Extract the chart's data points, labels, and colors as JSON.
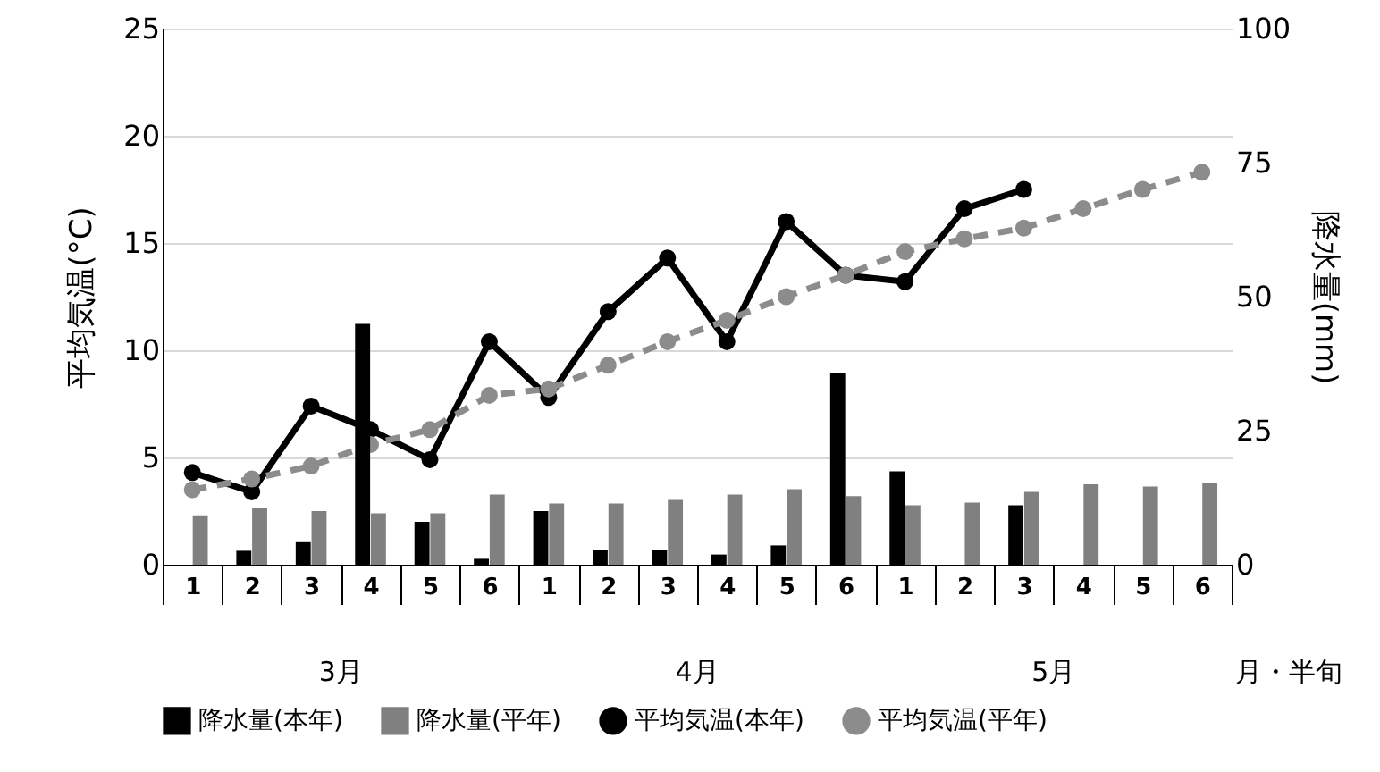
{
  "chart_data": {
    "type": "bar",
    "categories": [
      "1",
      "2",
      "3",
      "4",
      "5",
      "6",
      "1",
      "2",
      "3",
      "4",
      "5",
      "6",
      "1",
      "2",
      "3",
      "4",
      "5",
      "6"
    ],
    "annotations": [
      "3月",
      "4月",
      "5月"
    ],
    "xlabel": "月・半旬",
    "ylabel": "平均気温(°C)",
    "y2label": "降水量(mm)",
    "ylim": [
      0,
      25
    ],
    "yticks": [
      0,
      5,
      10,
      15,
      20,
      25
    ],
    "y2lim": [
      0,
      100
    ],
    "y2ticks": [
      0,
      25,
      50,
      75,
      100
    ],
    "grid": "y",
    "legend": "bottom",
    "marker": "circle",
    "series": [
      {
        "name": "降水量(本年)",
        "axis": "y2",
        "color": "#000000",
        "values": [
          0,
          2.6,
          4.2,
          44.9,
          8.0,
          1.1,
          10.0,
          2.8,
          2.8,
          1.9,
          3.6,
          35.8,
          17.4,
          0,
          11.1,
          null,
          null,
          null
        ]
      },
      {
        "name": "降水量(平年)",
        "axis": "y2",
        "color": "#808080",
        "values": [
          9.2,
          10.5,
          10.0,
          9.6,
          9.6,
          13.1,
          11.4,
          11.4,
          12.1,
          13.1,
          14.1,
          12.8,
          11.1,
          11.6,
          13.6,
          15.0,
          14.6,
          15.3
        ]
      },
      {
        "name": "平均気温(本年)",
        "type": "line",
        "color": "#000000",
        "line_style": "solid",
        "values": [
          4.3,
          3.4,
          7.4,
          6.3,
          4.9,
          10.4,
          7.8,
          11.8,
          14.3,
          10.4,
          16.0,
          13.5,
          13.2,
          16.6,
          17.5,
          null,
          null,
          null
        ]
      },
      {
        "name": "平均気温(平年)",
        "type": "line",
        "color": "#8c8c8c",
        "line_style": "dashed",
        "values": [
          3.5,
          4.0,
          4.6,
          5.6,
          6.3,
          7.9,
          8.2,
          9.3,
          10.4,
          11.4,
          12.5,
          13.5,
          14.6,
          15.2,
          15.7,
          16.6,
          17.5,
          18.3
        ]
      }
    ]
  }
}
